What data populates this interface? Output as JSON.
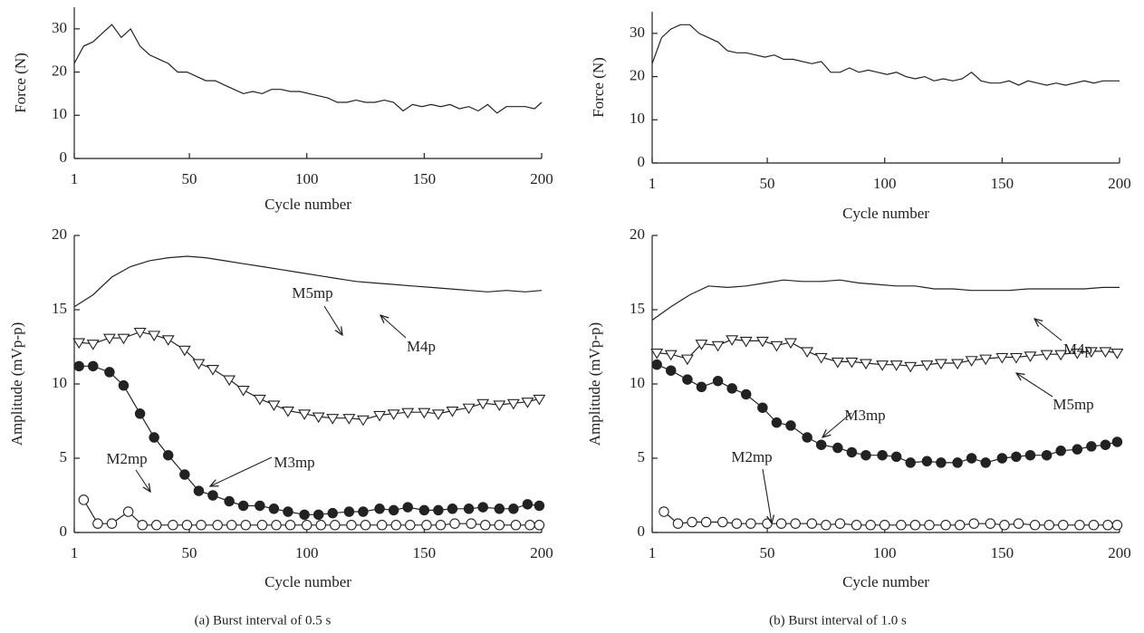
{
  "chart_data": [
    {
      "type": "line",
      "ylabel": "Force (N)",
      "xlabel": "Cycle number",
      "xlim": [
        1,
        200
      ],
      "xticks": [
        1,
        50,
        100,
        150,
        200
      ],
      "ylim": [
        0,
        35
      ],
      "yticks": [
        0,
        10,
        20,
        30
      ],
      "x": [
        1,
        5,
        9,
        13,
        17,
        21,
        25,
        29,
        33,
        37,
        41,
        45,
        49,
        53,
        57,
        61,
        65,
        69,
        73,
        77,
        81,
        85,
        89,
        93,
        97,
        101,
        105,
        109,
        113,
        117,
        121,
        125,
        129,
        133,
        137,
        141,
        145,
        149,
        153,
        157,
        161,
        165,
        169,
        173,
        177,
        181,
        185,
        189,
        193,
        197,
        200
      ],
      "series": [
        {
          "color": "#222",
          "marker": "none",
          "values": [
            22,
            26,
            27,
            29,
            31,
            28,
            30,
            26,
            24,
            23,
            22,
            20,
            20,
            19,
            18,
            18,
            17,
            16,
            15,
            15.5,
            15,
            16,
            16,
            15.5,
            15.5,
            15,
            14.5,
            14,
            13,
            13,
            13.5,
            13,
            13,
            13.5,
            13,
            11,
            12.5,
            12,
            12.5,
            12,
            12.5,
            11.5,
            12,
            11,
            12.5,
            10.5,
            12,
            12,
            12,
            11.5,
            13
          ]
        }
      ]
    },
    {
      "type": "line",
      "ylabel": "Force (N)",
      "xlabel": "Cycle number",
      "xlim": [
        1,
        200
      ],
      "xticks": [
        1,
        50,
        100,
        150,
        200
      ],
      "ylim": [
        0,
        35
      ],
      "yticks": [
        0,
        10,
        20,
        30
      ],
      "x": [
        1,
        5,
        9,
        13,
        17,
        21,
        25,
        29,
        33,
        37,
        41,
        45,
        49,
        53,
        57,
        61,
        65,
        69,
        73,
        77,
        81,
        85,
        89,
        93,
        97,
        101,
        105,
        109,
        113,
        117,
        121,
        125,
        129,
        133,
        137,
        141,
        145,
        149,
        153,
        157,
        161,
        165,
        169,
        173,
        177,
        181,
        185,
        189,
        193,
        197,
        200
      ],
      "series": [
        {
          "color": "#222",
          "marker": "none",
          "values": [
            23,
            29,
            31,
            32,
            32,
            30,
            29,
            28,
            26,
            25.5,
            25.5,
            25,
            24.5,
            25,
            24,
            24,
            23.5,
            23,
            23.5,
            21,
            21,
            22,
            21,
            21.5,
            21,
            20.5,
            21,
            20,
            19.5,
            20,
            19,
            19.5,
            19,
            19.5,
            21,
            19,
            18.5,
            18.5,
            19,
            18,
            19,
            18.5,
            18,
            18.5,
            18,
            18.5,
            19,
            18.5,
            19,
            19,
            19
          ]
        }
      ]
    },
    {
      "type": "line",
      "ylabel": "Amplitude (mVp-p)",
      "xlabel": "Cycle number",
      "caption": "(a)  Burst interval of 0.5 s",
      "xlim": [
        1,
        200
      ],
      "xticks": [
        1,
        50,
        100,
        150,
        200
      ],
      "ylim": [
        0,
        20
      ],
      "yticks": [
        0,
        5,
        10,
        15,
        20
      ],
      "annotations": [
        "M4p",
        "M5mp",
        "M3mp",
        "M2mp"
      ],
      "series": [
        {
          "color": "#222",
          "marker": "none",
          "x": [
            1,
            9,
            17,
            25,
            33,
            41,
            49,
            57,
            65,
            73,
            81,
            89,
            97,
            105,
            113,
            121,
            129,
            137,
            145,
            153,
            161,
            169,
            177,
            185,
            193,
            200
          ],
          "values": [
            15.2,
            16,
            17.2,
            17.9,
            18.3,
            18.5,
            18.6,
            18.5,
            18.3,
            18.1,
            17.9,
            17.7,
            17.5,
            17.3,
            17.1,
            16.9,
            16.8,
            16.7,
            16.6,
            16.5,
            16.4,
            16.3,
            16.2,
            16.3,
            16.2,
            16.3
          ]
        },
        {
          "color": "#222",
          "marker": "triangle-open",
          "x": [
            3,
            9,
            16,
            22,
            29,
            35,
            41,
            48,
            54,
            60,
            67,
            73,
            80,
            86,
            92,
            99,
            105,
            111,
            118,
            124,
            131,
            137,
            143,
            150,
            156,
            162,
            169,
            175,
            182,
            188,
            194,
            199
          ],
          "values": [
            12.8,
            12.7,
            13.1,
            13.1,
            13.5,
            13.3,
            13.0,
            12.3,
            11.4,
            11.0,
            10.3,
            9.6,
            9.0,
            8.6,
            8.2,
            8.0,
            7.8,
            7.7,
            7.7,
            7.6,
            7.9,
            8.0,
            8.1,
            8.1,
            8.0,
            8.2,
            8.4,
            8.7,
            8.6,
            8.7,
            8.8,
            9.0
          ]
        },
        {
          "color": "#222",
          "marker": "circle-filled",
          "x": [
            3,
            9,
            16,
            22,
            29,
            35,
            41,
            48,
            54,
            60,
            67,
            73,
            80,
            86,
            92,
            99,
            105,
            111,
            118,
            124,
            131,
            137,
            143,
            150,
            156,
            162,
            169,
            175,
            182,
            188,
            194,
            199
          ],
          "values": [
            11.2,
            11.2,
            10.8,
            9.9,
            8.0,
            6.4,
            5.2,
            3.9,
            2.8,
            2.5,
            2.1,
            1.8,
            1.8,
            1.6,
            1.4,
            1.2,
            1.2,
            1.3,
            1.4,
            1.4,
            1.6,
            1.5,
            1.7,
            1.5,
            1.5,
            1.6,
            1.6,
            1.7,
            1.6,
            1.6,
            1.9,
            1.8
          ]
        },
        {
          "color": "#222",
          "marker": "circle-open",
          "x": [
            5,
            11,
            17,
            24,
            30,
            36,
            43,
            49,
            55,
            62,
            68,
            74,
            81,
            87,
            93,
            100,
            106,
            112,
            119,
            125,
            132,
            138,
            144,
            151,
            157,
            163,
            170,
            176,
            182,
            189,
            195,
            199
          ],
          "values": [
            2.2,
            0.6,
            0.6,
            1.4,
            0.5,
            0.5,
            0.5,
            0.5,
            0.5,
            0.5,
            0.5,
            0.5,
            0.5,
            0.5,
            0.5,
            0.5,
            0.5,
            0.5,
            0.5,
            0.5,
            0.5,
            0.5,
            0.5,
            0.5,
            0.5,
            0.6,
            0.6,
            0.5,
            0.5,
            0.5,
            0.5,
            0.5
          ]
        }
      ]
    },
    {
      "type": "line",
      "ylabel": "Amplitude (mVp-p)",
      "xlabel": "Cycle number",
      "caption": "(b)  Burst interval of 1.0 s",
      "xlim": [
        1,
        200
      ],
      "xticks": [
        1,
        50,
        100,
        150,
        200
      ],
      "ylim": [
        0,
        20
      ],
      "yticks": [
        0,
        5,
        10,
        15,
        20
      ],
      "annotations": [
        "M4p",
        "M5mp",
        "M3mp",
        "M2mp"
      ],
      "series": [
        {
          "color": "#222",
          "marker": "none",
          "x": [
            1,
            9,
            17,
            25,
            33,
            41,
            49,
            57,
            65,
            73,
            81,
            89,
            97,
            105,
            113,
            121,
            129,
            137,
            145,
            153,
            161,
            169,
            177,
            185,
            193,
            200
          ],
          "values": [
            14.3,
            15.2,
            16,
            16.6,
            16.5,
            16.6,
            16.8,
            17,
            16.9,
            16.9,
            17,
            16.8,
            16.7,
            16.6,
            16.6,
            16.4,
            16.4,
            16.3,
            16.3,
            16.3,
            16.4,
            16.4,
            16.4,
            16.4,
            16.5,
            16.5
          ]
        },
        {
          "color": "#222",
          "marker": "triangle-open",
          "x": [
            3,
            9,
            16,
            22,
            29,
            35,
            41,
            48,
            54,
            60,
            67,
            73,
            80,
            86,
            92,
            99,
            105,
            111,
            118,
            124,
            131,
            137,
            143,
            150,
            156,
            162,
            169,
            175,
            182,
            188,
            194,
            199
          ],
          "values": [
            12.1,
            12.0,
            11.7,
            12.7,
            12.6,
            13.0,
            12.9,
            12.9,
            12.6,
            12.8,
            12.2,
            11.8,
            11.5,
            11.5,
            11.4,
            11.3,
            11.3,
            11.2,
            11.3,
            11.4,
            11.4,
            11.6,
            11.7,
            11.8,
            11.8,
            11.9,
            12.0,
            12.0,
            12.1,
            12.2,
            12.2,
            12.1
          ]
        },
        {
          "color": "#222",
          "marker": "circle-filled",
          "x": [
            3,
            9,
            16,
            22,
            29,
            35,
            41,
            48,
            54,
            60,
            67,
            73,
            80,
            86,
            92,
            99,
            105,
            111,
            118,
            124,
            131,
            137,
            143,
            150,
            156,
            162,
            169,
            175,
            182,
            188,
            194,
            199
          ],
          "values": [
            11.3,
            10.9,
            10.3,
            9.8,
            10.2,
            9.7,
            9.3,
            8.4,
            7.4,
            7.2,
            6.4,
            5.9,
            5.7,
            5.4,
            5.2,
            5.2,
            5.1,
            4.7,
            4.8,
            4.7,
            4.7,
            5.0,
            4.7,
            5.0,
            5.1,
            5.2,
            5.2,
            5.5,
            5.6,
            5.8,
            5.9,
            6.1
          ]
        },
        {
          "color": "#222",
          "marker": "circle-open",
          "x": [
            6,
            12,
            18,
            24,
            31,
            37,
            43,
            50,
            56,
            62,
            69,
            75,
            81,
            88,
            94,
            100,
            107,
            113,
            119,
            126,
            132,
            138,
            145,
            151,
            157,
            164,
            170,
            176,
            183,
            189,
            195,
            199
          ],
          "values": [
            1.4,
            0.6,
            0.7,
            0.7,
            0.7,
            0.6,
            0.6,
            0.6,
            0.6,
            0.6,
            0.6,
            0.5,
            0.6,
            0.5,
            0.5,
            0.5,
            0.5,
            0.5,
            0.5,
            0.5,
            0.5,
            0.6,
            0.6,
            0.5,
            0.6,
            0.5,
            0.5,
            0.5,
            0.5,
            0.5,
            0.5,
            0.5
          ]
        }
      ]
    }
  ]
}
